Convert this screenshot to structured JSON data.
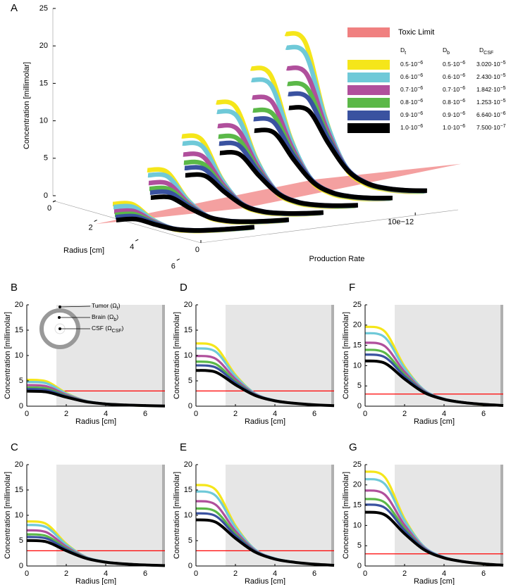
{
  "chart_data": [
    {
      "type": "line3d",
      "panel": "A",
      "ylabel": "Concentration [millimolar]",
      "xlabel": "Radius [cm]",
      "zlabel": "Production Rate",
      "xlim": [
        0,
        7
      ],
      "xticks": [
        0,
        2,
        4,
        6
      ],
      "ylim": [
        0,
        25
      ],
      "yticks": [
        0,
        5,
        10,
        15,
        20,
        25
      ],
      "zlim": [
        0,
        1.2e-11
      ],
      "zticks": [
        0,
        {
          "value": 1e-11,
          "label": "10e−12"
        }
      ],
      "toxic_limit": {
        "name": "Toxic Limit",
        "value": 3,
        "color": "#f08080"
      },
      "legend": {
        "headers": [
          [
            "D",
            "t"
          ],
          [
            "D",
            "b"
          ],
          [
            "D",
            "CSF"
          ]
        ],
        "rows": [
          [
            [
              "0.5·10",
              "−6"
            ],
            [
              "0.5·10",
              "−6"
            ],
            [
              "3.020·10",
              "−5"
            ]
          ],
          [
            [
              "0.6·10",
              "−6"
            ],
            [
              "0.6·10",
              "−6"
            ],
            [
              "2.430·10",
              "−5"
            ]
          ],
          [
            [
              "0.7·10",
              "−6"
            ],
            [
              "0.7·10",
              "−6"
            ],
            [
              "1.842·10",
              "−5"
            ]
          ],
          [
            [
              "0.8·10",
              "−6"
            ],
            [
              "0.8·10",
              "−6"
            ],
            [
              "1.253·10",
              "−5"
            ]
          ],
          [
            [
              "0.9·10",
              "−6"
            ],
            [
              "0.9·10",
              "−6"
            ],
            [
              "6.640·10",
              "−6"
            ]
          ],
          [
            [
              "1.0·10",
              "−6"
            ],
            [
              "1.0·10",
              "−6"
            ],
            [
              "7.500·10",
              "−7"
            ]
          ]
        ]
      }
    },
    {
      "type": "line",
      "panel": "B",
      "x": [
        0,
        1,
        2,
        3,
        4,
        5,
        6,
        7
      ],
      "xlim": [
        0,
        7
      ],
      "xticks": [
        0,
        2,
        4,
        6
      ],
      "ylim": [
        0,
        20
      ],
      "yticks": [
        0,
        5,
        10,
        15,
        20
      ],
      "xlabel": "Radius [cm]",
      "ylabel": "Concentration [millimolar]",
      "hline": 3,
      "hline_color": "#ff0000",
      "span": [
        1.5,
        7
      ],
      "inset": {
        "labels": [
          [
            "Tumor (Ω",
            "t",
            ")"
          ],
          [
            "Brain (Ω",
            "b",
            ")"
          ],
          [
            "CSF (Ω",
            "CSF",
            ")"
          ]
        ]
      },
      "series": [
        {
          "color": "#f5e61a",
          "values": [
            5.2,
            4.89,
            2.6,
            1.04,
            0.47,
            0.23,
            0.1,
            0.04
          ]
        },
        {
          "color": "#6fc9d8",
          "values": [
            4.78,
            4.5,
            2.49,
            1.05,
            0.49,
            0.25,
            0.11,
            0.04
          ]
        },
        {
          "color": "#b04f9c",
          "values": [
            4.16,
            3.93,
            2.25,
            1.0,
            0.47,
            0.25,
            0.12,
            0.05
          ]
        },
        {
          "color": "#5bb848",
          "values": [
            3.69,
            3.49,
            2.07,
            0.96,
            0.46,
            0.24,
            0.12,
            0.04
          ]
        },
        {
          "color": "#3a52a0",
          "values": [
            3.38,
            3.2,
            1.96,
            0.95,
            0.47,
            0.25,
            0.12,
            0.05
          ]
        },
        {
          "color": "#000000",
          "values": [
            2.96,
            2.81,
            1.78,
            0.89,
            0.44,
            0.24,
            0.12,
            0.04
          ]
        }
      ]
    },
    {
      "type": "line",
      "panel": "C",
      "x": [
        0,
        1,
        2,
        3,
        4,
        5,
        6,
        7
      ],
      "xlim": [
        0,
        7
      ],
      "xticks": [
        0,
        2,
        4,
        6
      ],
      "ylim": [
        0,
        20
      ],
      "yticks": [
        0,
        5,
        10,
        15,
        20
      ],
      "xlabel": "Radius [cm]",
      "ylabel": "Concentration [millimolar]",
      "hline": 3,
      "hline_color": "#ff0000",
      "span": [
        1.5,
        7
      ],
      "series": [
        {
          "color": "#f5e61a",
          "values": [
            8.8,
            8.27,
            4.4,
            1.76,
            0.79,
            0.4,
            0.18,
            0.07
          ]
        },
        {
          "color": "#6fc9d8",
          "values": [
            8.1,
            7.63,
            4.21,
            1.78,
            0.83,
            0.42,
            0.19,
            0.07
          ]
        },
        {
          "color": "#b04f9c",
          "values": [
            7.04,
            6.65,
            3.8,
            1.69,
            0.8,
            0.42,
            0.2,
            0.08
          ]
        },
        {
          "color": "#5bb848",
          "values": [
            6.25,
            5.91,
            3.5,
            1.63,
            0.79,
            0.41,
            0.2,
            0.08
          ]
        },
        {
          "color": "#3a52a0",
          "values": [
            5.72,
            5.42,
            3.32,
            1.6,
            0.79,
            0.42,
            0.21,
            0.08
          ]
        },
        {
          "color": "#000000",
          "values": [
            5.02,
            4.77,
            3.01,
            1.51,
            0.75,
            0.4,
            0.2,
            0.08
          ]
        }
      ]
    },
    {
      "type": "line",
      "panel": "D",
      "x": [
        0,
        1,
        2,
        3,
        4,
        5,
        6,
        7
      ],
      "xlim": [
        0,
        7
      ],
      "xticks": [
        0,
        2,
        4,
        6
      ],
      "ylim": [
        0,
        20
      ],
      "yticks": [
        0,
        5,
        10,
        15,
        20
      ],
      "xlabel": "Radius [cm]",
      "ylabel": "Concentration [millimolar]",
      "hline": 3,
      "hline_color": "#ff0000",
      "span": [
        1.5,
        7
      ],
      "series": [
        {
          "color": "#f5e61a",
          "values": [
            12.4,
            11.66,
            6.2,
            2.48,
            1.12,
            0.56,
            0.25,
            0.1
          ]
        },
        {
          "color": "#6fc9d8",
          "values": [
            11.41,
            10.75,
            5.93,
            2.51,
            1.16,
            0.59,
            0.27,
            0.1
          ]
        },
        {
          "color": "#b04f9c",
          "values": [
            9.92,
            9.36,
            5.36,
            2.38,
            1.13,
            0.59,
            0.28,
            0.11
          ]
        },
        {
          "color": "#5bb848",
          "values": [
            8.8,
            8.32,
            4.93,
            2.29,
            1.11,
            0.58,
            0.28,
            0.11
          ]
        },
        {
          "color": "#3a52a0",
          "values": [
            8.06,
            7.64,
            4.67,
            2.26,
            1.11,
            0.59,
            0.29,
            0.11
          ]
        },
        {
          "color": "#000000",
          "values": [
            7.07,
            6.72,
            4.24,
            2.12,
            1.06,
            0.57,
            0.28,
            0.11
          ]
        }
      ]
    },
    {
      "type": "line",
      "panel": "E",
      "x": [
        0,
        1,
        2,
        3,
        4,
        5,
        6,
        7
      ],
      "xlim": [
        0,
        7
      ],
      "xticks": [
        0,
        2,
        4,
        6
      ],
      "ylim": [
        0,
        20
      ],
      "yticks": [
        0,
        5,
        10,
        15,
        20
      ],
      "xlabel": "Radius [cm]",
      "ylabel": "Concentration [millimolar]",
      "hline": 3,
      "hline_color": "#ff0000",
      "span": [
        1.5,
        7
      ],
      "series": [
        {
          "color": "#f5e61a",
          "values": [
            16,
            15.04,
            8,
            3.2,
            1.44,
            0.72,
            0.32,
            0.13
          ]
        },
        {
          "color": "#6fc9d8",
          "values": [
            14.72,
            13.87,
            7.65,
            3.24,
            1.5,
            0.77,
            0.35,
            0.13
          ]
        },
        {
          "color": "#b04f9c",
          "values": [
            12.8,
            12.08,
            6.91,
            3.07,
            1.46,
            0.76,
            0.36,
            0.14
          ]
        },
        {
          "color": "#5bb848",
          "values": [
            11.36,
            10.75,
            6.36,
            2.95,
            1.43,
            0.75,
            0.36,
            0.14
          ]
        },
        {
          "color": "#3a52a0",
          "values": [
            10.4,
            9.86,
            6.03,
            2.91,
            1.44,
            0.76,
            0.37,
            0.15
          ]
        },
        {
          "color": "#000000",
          "values": [
            9.12,
            8.66,
            5.47,
            2.74,
            1.37,
            0.73,
            0.36,
            0.14
          ]
        }
      ]
    },
    {
      "type": "line",
      "panel": "F",
      "x": [
        0,
        1,
        2,
        3,
        4,
        5,
        6,
        7
      ],
      "xlim": [
        0,
        7
      ],
      "xticks": [
        0,
        2,
        4,
        6
      ],
      "ylim": [
        0,
        25
      ],
      "yticks": [
        0,
        5,
        10,
        15,
        20,
        25
      ],
      "xlabel": "Radius [cm]",
      "ylabel": "Concentration [millimolar]",
      "hline": 3,
      "hline_color": "#ff0000",
      "span": [
        1.5,
        7
      ],
      "series": [
        {
          "color": "#f5e61a",
          "values": [
            19.6,
            18.42,
            9.8,
            3.92,
            1.76,
            0.88,
            0.39,
            0.16
          ]
        },
        {
          "color": "#6fc9d8",
          "values": [
            18.03,
            16.98,
            9.38,
            3.97,
            1.84,
            0.94,
            0.43,
            0.16
          ]
        },
        {
          "color": "#b04f9c",
          "values": [
            15.68,
            14.8,
            8.47,
            3.76,
            1.79,
            0.93,
            0.44,
            0.17
          ]
        },
        {
          "color": "#5bb848",
          "values": [
            13.92,
            13.17,
            7.8,
            3.62,
            1.75,
            0.92,
            0.45,
            0.17
          ]
        },
        {
          "color": "#3a52a0",
          "values": [
            12.74,
            12.08,
            7.39,
            3.57,
            1.76,
            0.93,
            0.46,
            0.18
          ]
        },
        {
          "color": "#000000",
          "values": [
            11.17,
            10.61,
            6.7,
            3.35,
            1.68,
            0.89,
            0.45,
            0.17
          ]
        }
      ]
    },
    {
      "type": "line",
      "panel": "G",
      "x": [
        0,
        1,
        2,
        3,
        4,
        5,
        6,
        7
      ],
      "xlim": [
        0,
        7
      ],
      "xticks": [
        0,
        2,
        4,
        6
      ],
      "ylim": [
        0,
        25
      ],
      "yticks": [
        0,
        5,
        10,
        15,
        20,
        25
      ],
      "xlabel": "Radius [cm]",
      "ylabel": "Concentration [millimolar]",
      "hline": 3,
      "hline_color": "#ff0000",
      "span": [
        1.5,
        7
      ],
      "series": [
        {
          "color": "#f5e61a",
          "values": [
            23.3,
            21.9,
            11.65,
            4.66,
            2.1,
            1.05,
            0.47,
            0.19
          ]
        },
        {
          "color": "#6fc9d8",
          "values": [
            21.44,
            20.2,
            11.15,
            4.72,
            2.19,
            1.11,
            0.51,
            0.19
          ]
        },
        {
          "color": "#b04f9c",
          "values": [
            18.64,
            17.6,
            10.07,
            4.47,
            2.12,
            1.1,
            0.52,
            0.21
          ]
        },
        {
          "color": "#5bb848",
          "values": [
            16.54,
            15.65,
            9.26,
            4.3,
            2.08,
            1.09,
            0.53,
            0.2
          ]
        },
        {
          "color": "#3a52a0",
          "values": [
            15.15,
            14.36,
            8.79,
            4.24,
            2.09,
            1.11,
            0.55,
            0.21
          ]
        },
        {
          "color": "#000000",
          "values": [
            13.28,
            12.62,
            7.97,
            3.98,
            1.99,
            1.06,
            0.53,
            0.2
          ]
        }
      ]
    }
  ]
}
